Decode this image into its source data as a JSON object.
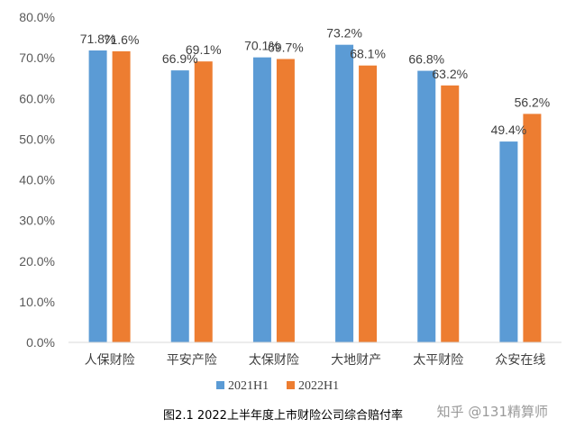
{
  "chart_data": {
    "type": "bar",
    "title": "",
    "caption": "图2.1  2022上半年度上市财险公司综合赔付率",
    "categories": [
      "人保财险",
      "平安产险",
      "太保财险",
      "大地财产",
      "太平财险",
      "众安在线"
    ],
    "series": [
      {
        "name": "2021H1",
        "color": "#5B9BD5",
        "values": [
          71.8,
          66.9,
          70.1,
          73.2,
          66.8,
          49.4
        ],
        "labels": [
          "71.8%",
          "66.9%",
          "70.1%",
          "73.2%",
          "66.8%",
          "49.4%"
        ]
      },
      {
        "name": "2022H1",
        "color": "#ED7D31",
        "values": [
          71.6,
          69.1,
          69.7,
          68.1,
          63.2,
          56.2
        ],
        "labels": [
          "71.6%",
          "69.1%",
          "69.7%",
          "68.1%",
          "63.2%",
          "56.2%"
        ]
      }
    ],
    "ylim": [
      0,
      80
    ],
    "yticks": [
      0,
      10,
      20,
      30,
      40,
      50,
      60,
      70,
      80
    ],
    "ytick_labels": [
      "0.0%",
      "10.0%",
      "20.0%",
      "30.0%",
      "40.0%",
      "50.0%",
      "60.0%",
      "70.0%",
      "80.0%"
    ],
    "legend_position": "bottom",
    "grid": false
  },
  "watermark": {
    "text": "知乎 @131精算师"
  }
}
